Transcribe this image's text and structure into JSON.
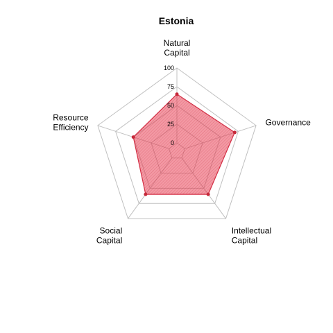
{
  "chart_data": {
    "type": "radar",
    "title": "Estonia",
    "axes": [
      [
        "Natural",
        "Capital"
      ],
      [
        "Governance"
      ],
      [
        "Intellectual",
        "Capital"
      ],
      [
        "Social",
        "Capital"
      ],
      [
        "Resource",
        "Efficiency"
      ]
    ],
    "values": [
      65,
      70,
      60,
      60,
      50
    ],
    "ticks": [
      "0",
      "25",
      "50",
      "75",
      "100"
    ],
    "range": [
      0,
      100
    ],
    "colors": {
      "fill": "#e8334a",
      "stroke": "#d32f45",
      "point": "#c62839",
      "grid": "#c0c0c0"
    }
  }
}
